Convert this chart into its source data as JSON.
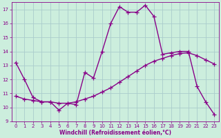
{
  "line1_x": [
    0,
    1,
    2,
    3,
    4,
    5,
    6,
    7,
    8,
    9,
    10,
    11,
    12,
    13,
    14,
    15,
    16,
    17,
    18,
    19,
    20,
    21,
    22,
    23
  ],
  "line1_y": [
    13.2,
    12.0,
    10.7,
    10.4,
    10.4,
    9.8,
    10.3,
    10.2,
    12.5,
    12.1,
    14.0,
    16.0,
    17.2,
    16.8,
    16.8,
    17.3,
    16.5,
    13.8,
    13.9,
    14.0,
    14.0,
    11.5,
    10.4,
    9.5
  ],
  "line2_x": [
    0,
    1,
    2,
    3,
    4,
    5,
    6,
    7,
    8,
    9,
    10,
    11,
    12,
    13,
    14,
    15,
    16,
    17,
    18,
    19,
    20,
    21,
    22,
    23
  ],
  "line2_y": [
    10.8,
    10.6,
    10.5,
    10.4,
    10.4,
    10.3,
    10.3,
    10.4,
    10.6,
    10.8,
    11.1,
    11.4,
    11.8,
    12.2,
    12.6,
    13.0,
    13.3,
    13.5,
    13.7,
    13.85,
    13.9,
    13.7,
    13.4,
    13.1
  ],
  "line_color": "#880088",
  "bg_color": "#cceedd",
  "grid_color": "#aacccc",
  "xlabel": "Windchill (Refroidissement éolien,°C)",
  "ylim": [
    9,
    17.5
  ],
  "xlim": [
    -0.5,
    23.5
  ],
  "yticks": [
    9,
    10,
    11,
    12,
    13,
    14,
    15,
    16,
    17
  ],
  "xticks": [
    0,
    1,
    2,
    3,
    4,
    5,
    6,
    7,
    8,
    9,
    10,
    11,
    12,
    13,
    14,
    15,
    16,
    17,
    18,
    19,
    20,
    21,
    22,
    23
  ],
  "marker": "+",
  "markersize": 5,
  "linewidth": 1.0
}
